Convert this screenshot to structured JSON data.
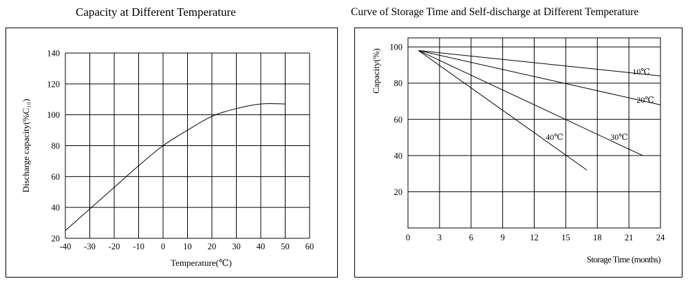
{
  "chart_data": [
    {
      "type": "line",
      "title": "Capacity at Different Temperature",
      "xlabel": "Temperature(℃)",
      "ylabel": "Discharge capacity(%C₁₀)",
      "xlim": [
        -40,
        60
      ],
      "ylim": [
        20,
        140
      ],
      "xticks": [
        "-40",
        "-30",
        "-20",
        "-10",
        "0",
        "10",
        "20",
        "30",
        "40",
        "50",
        "60"
      ],
      "yticks": [
        "140",
        "120",
        "100",
        "80",
        "60",
        "40",
        "20"
      ],
      "grid": true,
      "series": [
        {
          "name": "capacity",
          "x": [
            -40,
            -30,
            -20,
            -10,
            0,
            10,
            20,
            30,
            40,
            50
          ],
          "y": [
            25,
            39,
            53,
            67,
            80,
            90,
            99,
            104,
            107,
            107
          ]
        }
      ]
    },
    {
      "type": "line",
      "title": "Curve of Storage Time and Self-discharge at Different Temperature",
      "xlabel": "Storage Time (months)",
      "ylabel": "Capacity(%)",
      "xlim": [
        0,
        24
      ],
      "ylim": [
        0,
        105
      ],
      "xticks": [
        "0",
        "3",
        "6",
        "9",
        "12",
        "15",
        "18",
        "21",
        "24"
      ],
      "yticks": [
        "100",
        "80",
        "60",
        "40",
        "20"
      ],
      "grid": true,
      "series": [
        {
          "name": "10℃",
          "x": [
            1,
            24
          ],
          "y": [
            98,
            84
          ]
        },
        {
          "name": "20℃",
          "x": [
            1,
            24
          ],
          "y": [
            98,
            68
          ]
        },
        {
          "name": "30℃",
          "x": [
            1,
            22.3
          ],
          "y": [
            98,
            40
          ]
        },
        {
          "name": "40℃",
          "x": [
            1,
            17
          ],
          "y": [
            98,
            32
          ]
        }
      ]
    }
  ]
}
